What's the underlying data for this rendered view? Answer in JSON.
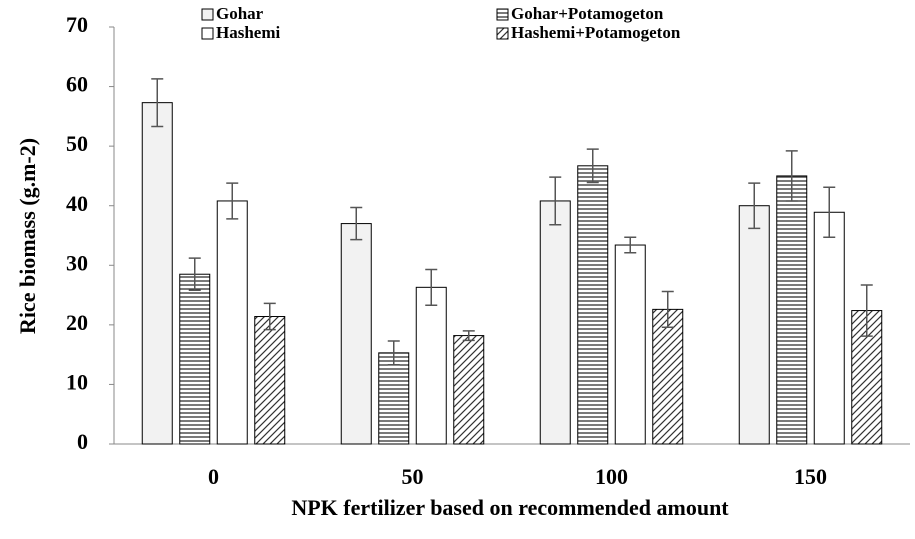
{
  "chart_data": {
    "type": "bar",
    "x_label": "NPK fertilizer based on recommended amount",
    "y_label": "Rice biomass (g.m-2)",
    "categories": [
      "0",
      "50",
      "100",
      "150"
    ],
    "series": [
      {
        "name": "Gohar",
        "color": "#f2f2f2",
        "pattern": "solid",
        "values": [
          57.3,
          37.0,
          40.8,
          40.0
        ],
        "errors": [
          4.0,
          2.7,
          4.0,
          3.8
        ]
      },
      {
        "name": "Gohar+Potamogeton",
        "color": "#ffffff",
        "pattern": "horizontal-lines",
        "values": [
          28.5,
          15.3,
          46.7,
          45.0
        ],
        "errors": [
          2.7,
          2.0,
          2.8,
          4.2
        ]
      },
      {
        "name": "Hashemi",
        "color": "#ffffff",
        "pattern": "solid",
        "values": [
          40.8,
          26.3,
          33.4,
          38.9
        ],
        "errors": [
          3.0,
          3.0,
          1.3,
          4.2
        ]
      },
      {
        "name": "Hashemi+Potamogeton",
        "color": "#ffffff",
        "pattern": "diagonal-lines",
        "values": [
          21.4,
          18.2,
          22.6,
          22.4
        ],
        "errors": [
          2.2,
          0.8,
          3.0,
          4.3
        ]
      }
    ],
    "ylim": [
      0,
      70
    ],
    "yticks": [
      0,
      10,
      20,
      30,
      40,
      50,
      60,
      70
    ],
    "grid": false
  }
}
